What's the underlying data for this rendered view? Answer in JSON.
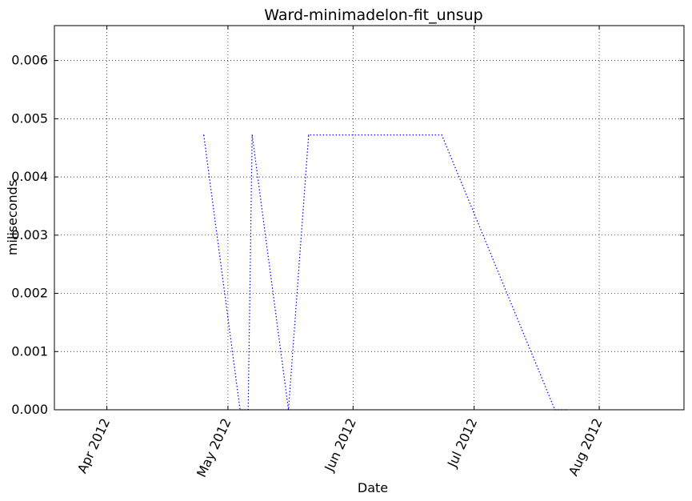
{
  "chart_data": {
    "type": "line",
    "title": "Ward-minimadelon-fit_unsup",
    "xlabel": "Date",
    "ylabel": "miliseconds",
    "x_axis": {
      "type": "date",
      "range": [
        "2012-03-19",
        "2012-08-22"
      ],
      "ticks": [
        {
          "date": "2012-04-01",
          "label": "Apr 2012"
        },
        {
          "date": "2012-05-01",
          "label": "May 2012"
        },
        {
          "date": "2012-06-01",
          "label": "Jun 2012"
        },
        {
          "date": "2012-07-01",
          "label": "Jul 2012"
        },
        {
          "date": "2012-08-01",
          "label": "Aug 2012"
        }
      ]
    },
    "y_axis": {
      "range": [
        0,
        0.0066
      ],
      "ticks": [
        {
          "value": 0.0,
          "label": "0.000"
        },
        {
          "value": 0.001,
          "label": "0.001"
        },
        {
          "value": 0.002,
          "label": "0.002"
        },
        {
          "value": 0.003,
          "label": "0.003"
        },
        {
          "value": 0.004,
          "label": "0.004"
        },
        {
          "value": 0.005,
          "label": "0.005"
        },
        {
          "value": 0.006,
          "label": "0.006"
        }
      ]
    },
    "grid": true,
    "line_style": "dotted",
    "series": [
      {
        "color": "#0000ff",
        "points": [
          {
            "x": "2012-04-25",
            "y": 0.00472
          },
          {
            "x": "2012-05-04",
            "y": 0.0
          },
          {
            "x": "2012-05-06",
            "y": 0.0
          },
          {
            "x": "2012-05-07",
            "y": 0.00472
          },
          {
            "x": "2012-05-16",
            "y": 0.0
          },
          {
            "x": "2012-05-21",
            "y": 0.00472
          },
          {
            "x": "2012-06-23",
            "y": 0.00472
          },
          {
            "x": "2012-07-21",
            "y": 0.0
          },
          {
            "x": "2012-07-24",
            "y": 0.0
          }
        ]
      }
    ]
  }
}
